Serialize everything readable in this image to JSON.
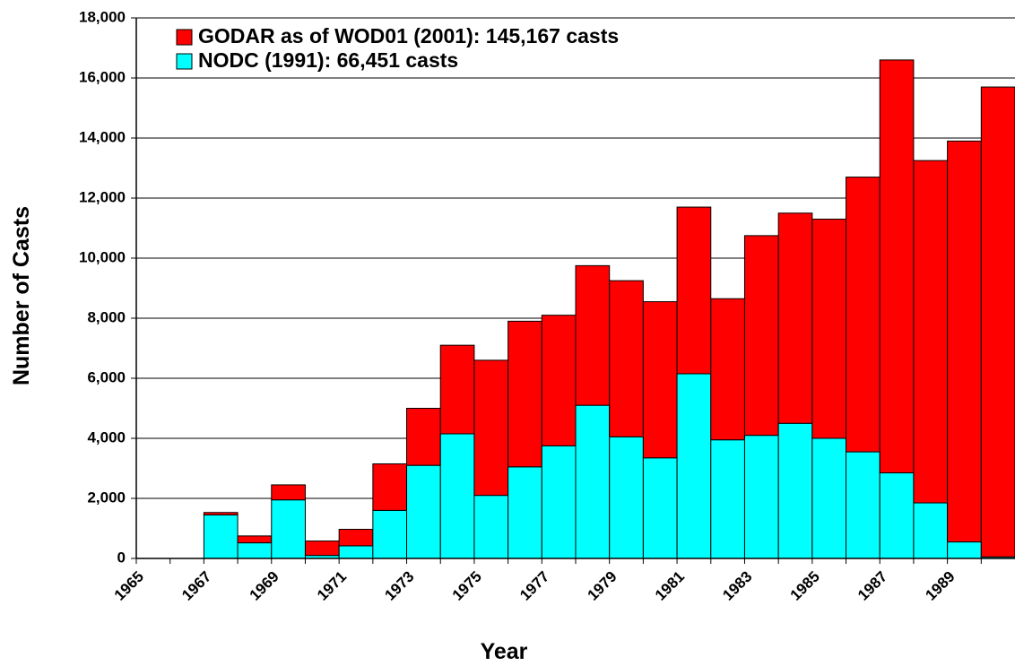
{
  "chart_data": {
    "type": "stacked_bar",
    "x_label": "Year",
    "y_label": "Number of Casts",
    "categories": [
      "1965",
      null,
      "1967",
      null,
      "1969",
      null,
      "1971",
      null,
      "1973",
      null,
      "1975",
      null,
      "1977",
      null,
      "1979",
      null,
      "1981",
      null,
      "1983",
      null,
      "1985",
      null,
      "1987",
      null,
      "1989",
      null
    ],
    "series": [
      {
        "name": "NODC (1991): 66,451 casts",
        "color": "#00ffff",
        "values": [
          0,
          0,
          1450,
          520,
          1950,
          100,
          420,
          1600,
          3100,
          4150,
          2100,
          3050,
          3750,
          5100,
          4050,
          3350,
          6150,
          3950,
          4100,
          4500,
          4000,
          3550,
          2850,
          1850,
          550,
          50
        ]
      },
      {
        "name": "GODAR as of WOD01 (2001): 145,167 casts",
        "color": "#ff0000",
        "values": [
          0,
          0,
          80,
          230,
          500,
          480,
          550,
          1550,
          1900,
          2950,
          4500,
          4850,
          4350,
          4650,
          5200,
          5200,
          5550,
          4700,
          6650,
          7000,
          7300,
          9150,
          13750,
          11400,
          13350,
          15650
        ]
      }
    ],
    "ylim": [
      0,
      18000
    ],
    "yticks": [
      0,
      {
        "value": 2000,
        "label": "2,000"
      },
      {
        "value": 4000,
        "label": "4,000"
      },
      {
        "value": 6000,
        "label": "6,000"
      },
      {
        "value": 8000,
        "label": "8,000"
      },
      {
        "value": 10000,
        "label": "10,000"
      },
      {
        "value": 12000,
        "label": "12,000"
      },
      {
        "value": 14000,
        "label": "14,000"
      },
      {
        "value": 16000,
        "label": "16,000"
      },
      {
        "value": 18000,
        "label": "18,000"
      }
    ],
    "grid": true
  }
}
